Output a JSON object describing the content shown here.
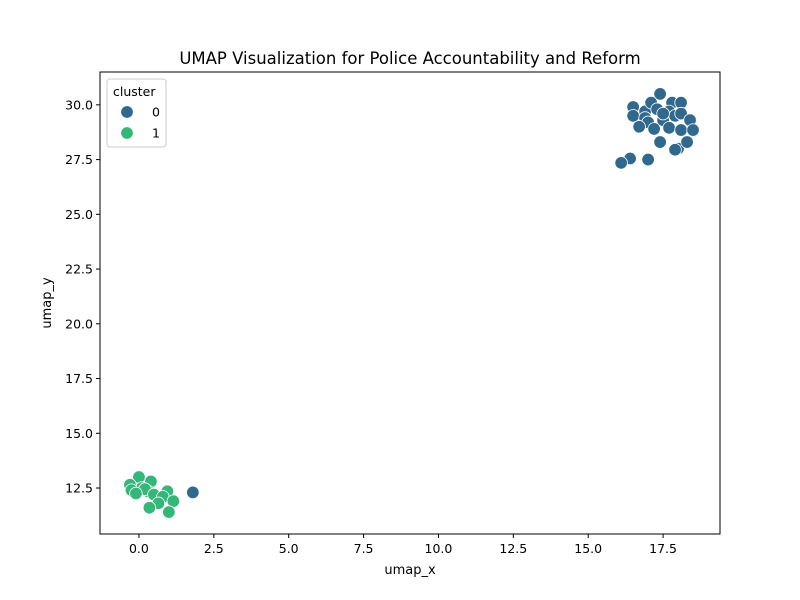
{
  "chart_data": {
    "type": "scatter",
    "title": "UMAP Visualization for Police Accountability and Reform",
    "xlabel": "umap_x",
    "ylabel": "umap_y",
    "xlim": [
      -1.3,
      19.4
    ],
    "ylim": [
      10.4,
      31.5
    ],
    "xticks": [
      0.0,
      2.5,
      5.0,
      7.5,
      10.0,
      12.5,
      15.0,
      17.5
    ],
    "xtick_labels": [
      "0.0",
      "2.5",
      "5.0",
      "7.5",
      "10.0",
      "12.5",
      "15.0",
      "17.5"
    ],
    "yticks": [
      12.5,
      15.0,
      17.5,
      20.0,
      22.5,
      25.0,
      27.5,
      30.0
    ],
    "ytick_labels": [
      "12.5",
      "15.0",
      "17.5",
      "20.0",
      "22.5",
      "25.0",
      "27.5",
      "30.0"
    ],
    "grid": false,
    "legend": {
      "title": "cluster",
      "placement": "top-left",
      "entries": [
        {
          "label": "0",
          "color": "#31688e"
        },
        {
          "label": "1",
          "color": "#35b779"
        }
      ]
    },
    "series": [
      {
        "cluster": "0",
        "color": "#31688e",
        "points": [
          [
            17.4,
            30.5
          ],
          [
            16.5,
            29.9
          ],
          [
            16.9,
            29.7
          ],
          [
            17.1,
            30.1
          ],
          [
            17.8,
            30.1
          ],
          [
            18.1,
            30.1
          ],
          [
            16.5,
            29.5
          ],
          [
            16.9,
            29.4
          ],
          [
            17.3,
            29.8
          ],
          [
            17.7,
            29.7
          ],
          [
            17.0,
            29.2
          ],
          [
            17.5,
            29.3
          ],
          [
            17.9,
            29.5
          ],
          [
            18.1,
            29.6
          ],
          [
            18.4,
            29.3
          ],
          [
            16.7,
            29.0
          ],
          [
            17.2,
            28.9
          ],
          [
            17.7,
            28.95
          ],
          [
            18.1,
            28.85
          ],
          [
            18.5,
            28.85
          ],
          [
            17.4,
            28.3
          ],
          [
            18.0,
            28.0
          ],
          [
            17.9,
            27.95
          ],
          [
            18.3,
            28.3
          ],
          [
            16.4,
            27.55
          ],
          [
            17.0,
            27.5
          ],
          [
            16.1,
            27.35
          ],
          [
            17.5,
            29.6
          ],
          [
            1.8,
            12.3
          ]
        ]
      },
      {
        "cluster": "1",
        "color": "#35b779",
        "points": [
          [
            0.0,
            13.0
          ],
          [
            0.4,
            12.8
          ],
          [
            -0.3,
            12.65
          ],
          [
            0.1,
            12.5
          ],
          [
            0.3,
            12.35
          ],
          [
            -0.25,
            12.4
          ],
          [
            0.2,
            12.45
          ],
          [
            -0.1,
            12.25
          ],
          [
            0.5,
            12.2
          ],
          [
            0.95,
            12.35
          ],
          [
            0.8,
            12.1
          ],
          [
            1.15,
            11.9
          ],
          [
            0.65,
            11.8
          ],
          [
            0.35,
            11.6
          ],
          [
            1.0,
            11.4
          ]
        ]
      }
    ]
  }
}
